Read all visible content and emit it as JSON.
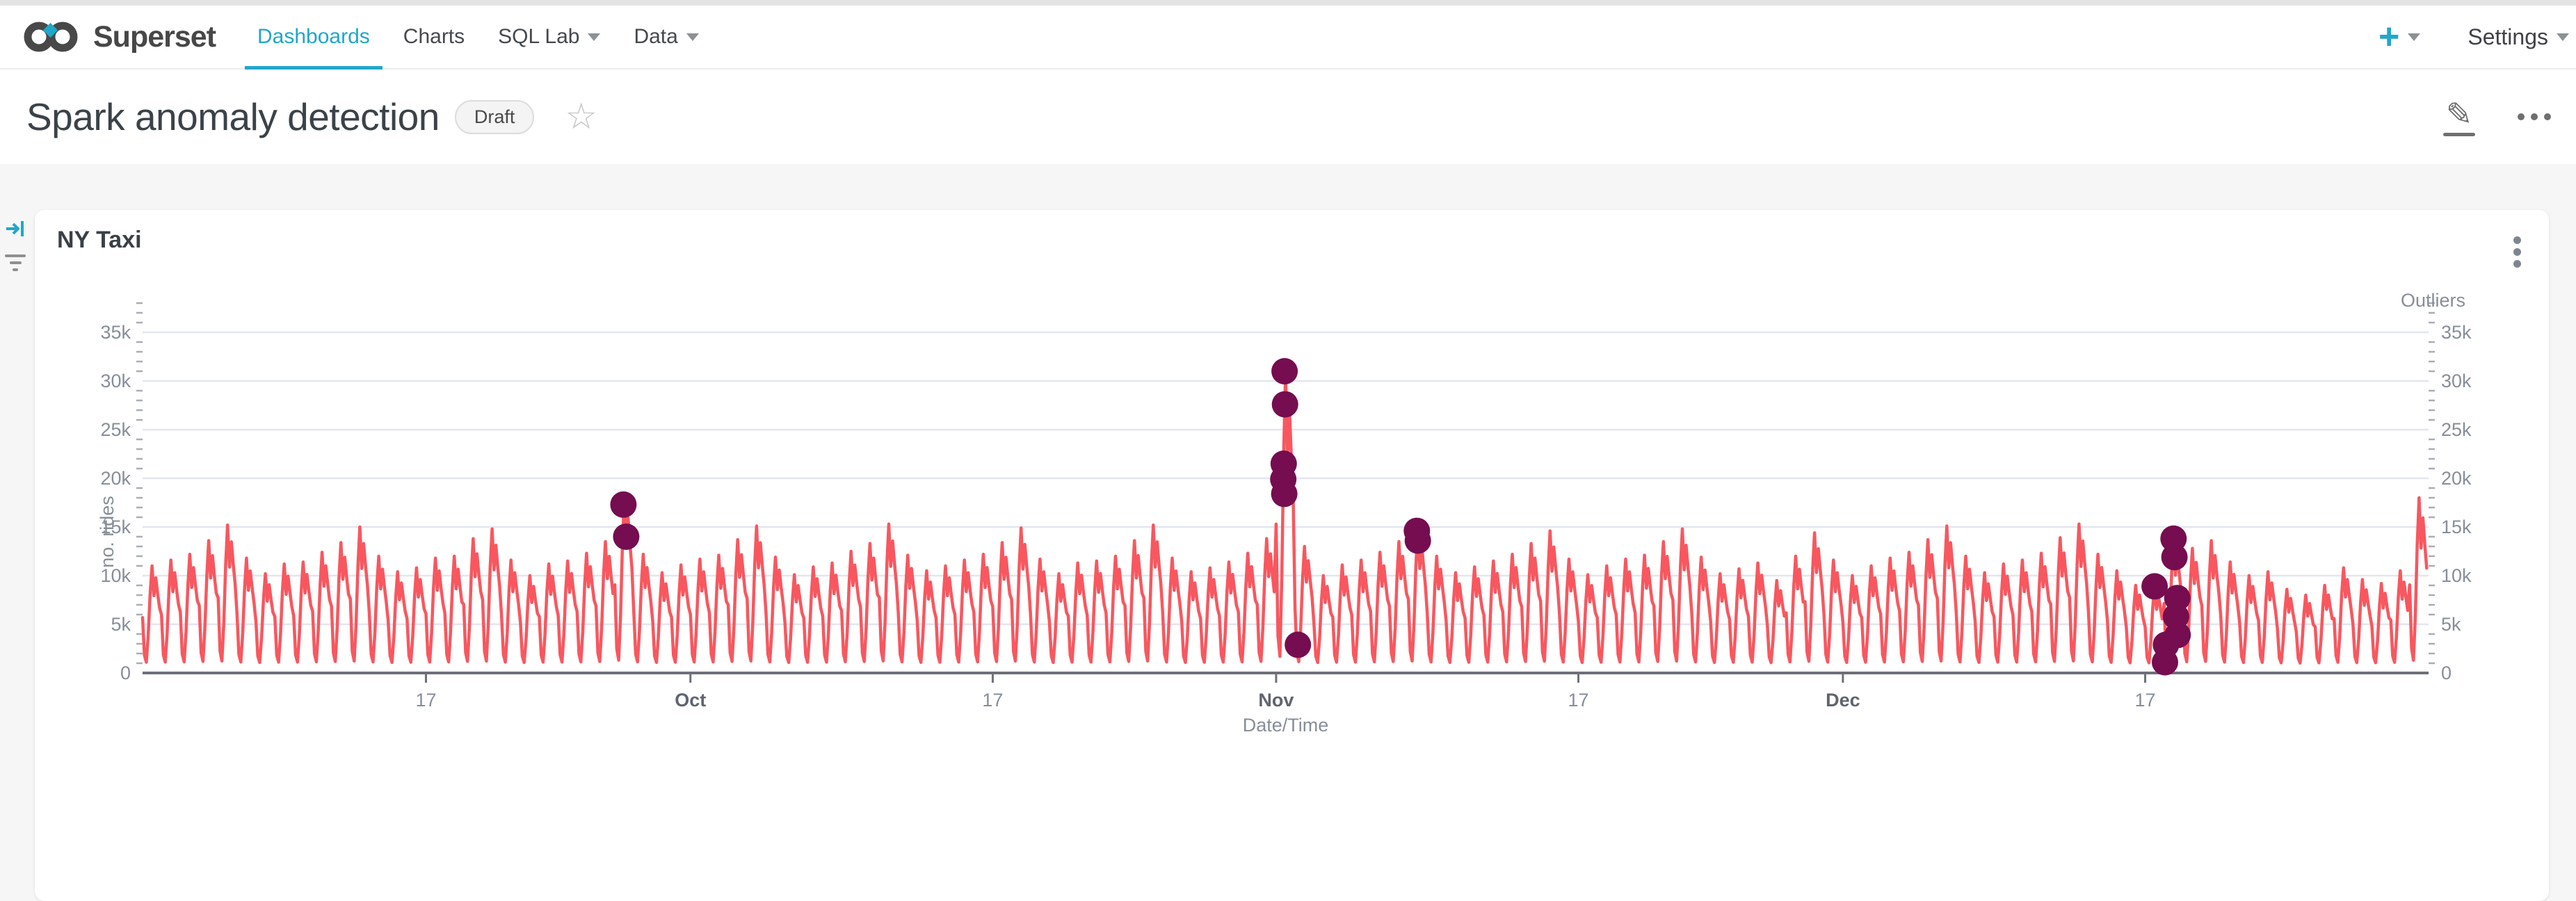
{
  "navbar": {
    "brand": "Superset",
    "items": [
      {
        "label": "Dashboards",
        "active": true,
        "caret": false
      },
      {
        "label": "Charts",
        "active": false,
        "caret": false
      },
      {
        "label": "SQL Lab",
        "active": false,
        "caret": true
      },
      {
        "label": "Data",
        "active": false,
        "caret": true
      }
    ],
    "new_button_label": "+",
    "settings_label": "Settings"
  },
  "title_bar": {
    "title": "Spark anomaly detection",
    "status_badge": "Draft"
  },
  "chart_panel": {
    "title": "NY Taxi"
  },
  "chart_data": {
    "type": "line",
    "subtype": "time-series with anomaly outlier markers",
    "title": "NY Taxi",
    "xlabel": "Date/Time",
    "ylabel_left": "no. rides",
    "legend_right_axis": "Outliers",
    "x_range": [
      "Sep 2",
      "Dec 31"
    ],
    "total_days": 121,
    "ylim_k": [
      0,
      35
    ],
    "y_tick_labels": [
      "0",
      "5k",
      "10k",
      "15k",
      "20k",
      "25k",
      "30k",
      "35k"
    ],
    "minor_tick_every_k": 1,
    "minor_tick_max_k": 38,
    "grid": "horizontal-only",
    "x_ticks": [
      {
        "day": 15,
        "label": "17",
        "bold": false
      },
      {
        "day": 29,
        "label": "Oct",
        "bold": true
      },
      {
        "day": 45,
        "label": "17",
        "bold": false
      },
      {
        "day": 60,
        "label": "Nov",
        "bold": true
      },
      {
        "day": 76,
        "label": "17",
        "bold": false
      },
      {
        "day": 90,
        "label": "Dec",
        "bold": true
      },
      {
        "day": 106,
        "label": "17",
        "bold": false
      }
    ],
    "colors": {
      "line": "#f8575f",
      "outlier": "#750d50",
      "grid": "#e2e6f0",
      "axis_line": "#6e7079",
      "tick": "#a9adb5",
      "label": "#878e99",
      "month_label": "#5f646e"
    },
    "series": {
      "name": "no. rides",
      "unit": "k rides",
      "daily_low_k": 0.8,
      "daily_peaks_k": [
        11.0,
        11.6,
        12.2,
        13.6,
        15.2,
        11.8,
        10.2,
        11.2,
        11.4,
        12.4,
        13.4,
        15.0,
        12.0,
        10.4,
        10.8,
        11.8,
        12.0,
        13.8,
        14.8,
        11.6,
        10.0,
        11.2,
        11.5,
        12.3,
        13.5,
        18.0,
        12.2,
        10.3,
        11.1,
        11.7,
        12.1,
        13.7,
        15.1,
        11.9,
        10.1,
        10.9,
        11.3,
        12.5,
        13.3,
        15.3,
        12.1,
        10.5,
        11.0,
        11.6,
        12.2,
        13.4,
        14.9,
        11.7,
        10.2,
        11.3,
        11.5,
        12.0,
        13.6,
        15.2,
        11.8,
        10.4,
        10.8,
        11.4,
        12.3,
        13.8,
        31.0,
        13.0,
        10.0,
        11.1,
        11.6,
        12.4,
        13.5,
        15.0,
        12.0,
        10.3,
        10.9,
        11.5,
        12.2,
        13.3,
        14.6,
        11.7,
        10.1,
        11.0,
        11.7,
        12.1,
        13.5,
        14.8,
        11.9,
        10.2,
        10.7,
        11.3,
        9.5,
        12.0,
        14.4,
        11.6,
        10.0,
        11.0,
        11.8,
        12.4,
        13.7,
        15.1,
        12.0,
        10.3,
        11.2,
        11.6,
        12.3,
        13.9,
        15.3,
        12.2,
        10.5,
        9.0,
        9.0,
        14.0,
        12.8,
        13.6,
        11.4,
        10.0,
        10.4,
        8.6,
        8.0,
        9.0,
        10.8,
        9.6,
        9.2,
        10.5,
        18.0
      ],
      "intraday_shape": [
        0.48,
        0.1,
        0.03,
        0.3,
        0.72,
        1.0,
        0.7,
        0.88,
        0.72,
        0.58
      ]
    },
    "outliers": {
      "name": "Outliers",
      "marker_radius_px": 19,
      "points_day_valuek": [
        [
          25.45,
          17.3
        ],
        [
          25.6,
          14.0
        ],
        [
          60.45,
          31.0
        ],
        [
          60.47,
          27.6
        ],
        [
          60.4,
          21.5
        ],
        [
          60.38,
          19.9
        ],
        [
          60.43,
          18.4
        ],
        [
          61.15,
          2.9
        ],
        [
          67.45,
          14.6
        ],
        [
          67.5,
          13.6
        ],
        [
          106.5,
          8.9
        ],
        [
          107.5,
          13.8
        ],
        [
          107.55,
          11.9
        ],
        [
          107.7,
          7.7
        ],
        [
          107.63,
          5.8
        ],
        [
          107.72,
          3.9
        ],
        [
          107.1,
          2.9
        ],
        [
          107.05,
          1.1
        ]
      ]
    }
  }
}
